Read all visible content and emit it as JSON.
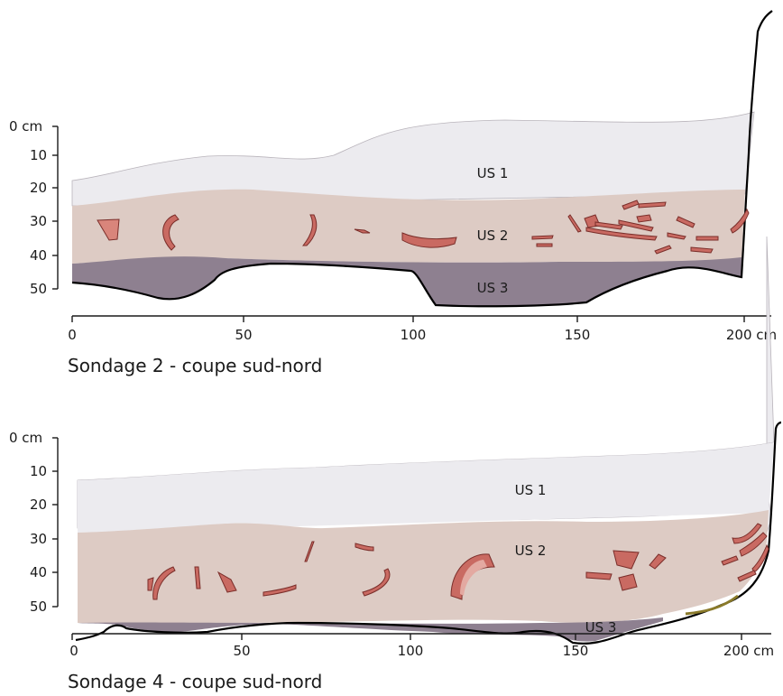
{
  "colors": {
    "us1": "#ecebef",
    "us2": "#ddcbc4",
    "us3": "#8e8090",
    "sherd_fill": "#c96a62",
    "sherd_stroke": "#7a2e2a",
    "sherd_light": "#e3a9a1",
    "profile_line": "#000000",
    "root_line": "#8a7a2a"
  },
  "sections": [
    {
      "id": "sondage-2",
      "caption": "Sondage 2 - coupe sud-nord",
      "depth_ticks": [
        "0 cm",
        "10",
        "20",
        "30",
        "40",
        "50"
      ],
      "x_ticks": [
        "0",
        "50",
        "100",
        "150",
        "200 cm"
      ],
      "layers": [
        {
          "key": "us1",
          "label": "US 1"
        },
        {
          "key": "us2",
          "label": "US 2"
        },
        {
          "key": "us3",
          "label": "US 3"
        }
      ]
    },
    {
      "id": "sondage-4",
      "caption": "Sondage 4 - coupe sud-nord",
      "depth_ticks": [
        "0 cm",
        "10",
        "20",
        "30",
        "40",
        "50"
      ],
      "x_ticks": [
        "0",
        "50",
        "100",
        "150",
        "200 cm"
      ],
      "layers": [
        {
          "key": "us1",
          "label": "US 1"
        },
        {
          "key": "us2",
          "label": "US 2"
        },
        {
          "key": "us3",
          "label": "US 3"
        }
      ]
    }
  ]
}
